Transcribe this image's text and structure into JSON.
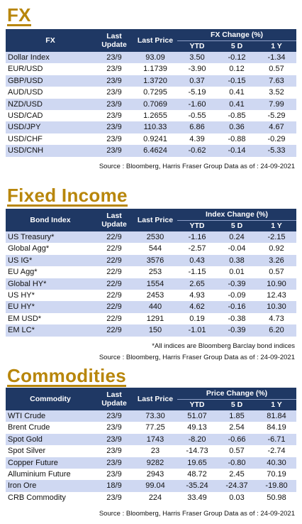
{
  "fx": {
    "title": "FX",
    "headers": {
      "name": "FX",
      "update": "Last Update",
      "price": "Last Price",
      "group": "FX Change (%)",
      "c1": "YTD",
      "c2": "5 D",
      "c3": "1 Y"
    },
    "rows": [
      {
        "name": "Dollar Index",
        "update": "23/9",
        "price": "93.09",
        "c1": "3.50",
        "c2": "-0.12",
        "c3": "-1.34"
      },
      {
        "name": "EUR/USD",
        "update": "23/9",
        "price": "1.1739",
        "c1": "-3.90",
        "c2": "0.12",
        "c3": "0.57"
      },
      {
        "name": "GBP/USD",
        "update": "23/9",
        "price": "1.3720",
        "c1": "0.37",
        "c2": "-0.15",
        "c3": "7.63"
      },
      {
        "name": "AUD/USD",
        "update": "23/9",
        "price": "0.7295",
        "c1": "-5.19",
        "c2": "0.41",
        "c3": "3.52"
      },
      {
        "name": "NZD/USD",
        "update": "23/9",
        "price": "0.7069",
        "c1": "-1.60",
        "c2": "0.41",
        "c3": "7.99"
      },
      {
        "name": "USD/CAD",
        "update": "23/9",
        "price": "1.2655",
        "c1": "-0.55",
        "c2": "-0.85",
        "c3": "-5.29"
      },
      {
        "name": "USD/JPY",
        "update": "23/9",
        "price": "110.33",
        "c1": "6.86",
        "c2": "0.36",
        "c3": "4.67"
      },
      {
        "name": "USD/CHF",
        "update": "23/9",
        "price": "0.9241",
        "c1": "4.39",
        "c2": "-0.88",
        "c3": "-0.29"
      },
      {
        "name": "USD/CNH",
        "update": "23/9",
        "price": "6.4624",
        "c1": "-0.62",
        "c2": "-0.14",
        "c3": "-5.33"
      }
    ],
    "source": "Source : Bloomberg, Harris Fraser Group Data as of : 24-09-2021"
  },
  "fixed_income": {
    "title": "Fixed Income",
    "headers": {
      "name": "Bond Index",
      "update": "Last Update",
      "price": "Last Price",
      "group": "Index Change (%)",
      "c1": "YTD",
      "c2": "5 D",
      "c3": "1 Y"
    },
    "rows": [
      {
        "name": "US Treasury*",
        "update": "22/9",
        "price": "2530",
        "c1": "-1.16",
        "c2": "0.24",
        "c3": "-2.15"
      },
      {
        "name": "Global Agg*",
        "update": "22/9",
        "price": "544",
        "c1": "-2.57",
        "c2": "-0.04",
        "c3": "0.92"
      },
      {
        "name": "US IG*",
        "update": "22/9",
        "price": "3576",
        "c1": "0.43",
        "c2": "0.38",
        "c3": "3.26"
      },
      {
        "name": "EU Agg*",
        "update": "22/9",
        "price": "253",
        "c1": "-1.15",
        "c2": "0.01",
        "c3": "0.57"
      },
      {
        "name": "Global HY*",
        "update": "22/9",
        "price": "1554",
        "c1": "2.65",
        "c2": "-0.39",
        "c3": "10.90"
      },
      {
        "name": "US HY*",
        "update": "22/9",
        "price": "2453",
        "c1": "4.93",
        "c2": "-0.09",
        "c3": "12.43"
      },
      {
        "name": "EU HY*",
        "update": "22/9",
        "price": "440",
        "c1": "4.62",
        "c2": "-0.16",
        "c3": "10.30"
      },
      {
        "name": "EM USD*",
        "update": "22/9",
        "price": "1291",
        "c1": "0.19",
        "c2": "-0.38",
        "c3": "4.73"
      },
      {
        "name": "EM LC*",
        "update": "22/9",
        "price": "150",
        "c1": "-1.01",
        "c2": "-0.39",
        "c3": "6.20"
      }
    ],
    "note": "*All indices are Bloomberg Barclay bond indices",
    "source": "Source : Bloomberg, Harris Fraser Group Data as of : 24-09-2021"
  },
  "commodities": {
    "title": "Commodities",
    "headers": {
      "name": "Commodity",
      "update": "Last Update",
      "price": "Last Price",
      "group": "Price Change (%)",
      "c1": "YTD",
      "c2": "5 D",
      "c3": "1 Y"
    },
    "rows": [
      {
        "name": "WTI Crude",
        "update": "23/9",
        "price": "73.30",
        "c1": "51.07",
        "c2": "1.85",
        "c3": "81.84"
      },
      {
        "name": "Brent Crude",
        "update": "23/9",
        "price": "77.25",
        "c1": "49.13",
        "c2": "2.54",
        "c3": "84.19"
      },
      {
        "name": "Spot Gold",
        "update": "23/9",
        "price": "1743",
        "c1": "-8.20",
        "c2": "-0.66",
        "c3": "-6.71"
      },
      {
        "name": "Spot Silver",
        "update": "23/9",
        "price": "23",
        "c1": "-14.73",
        "c2": "0.57",
        "c3": "-2.74"
      },
      {
        "name": "Copper Future",
        "update": "23/9",
        "price": "9282",
        "c1": "19.65",
        "c2": "-0.80",
        "c3": "40.30"
      },
      {
        "name": "Alluminium Future",
        "update": "23/9",
        "price": "2943",
        "c1": "48.72",
        "c2": "2.45",
        "c3": "70.19"
      },
      {
        "name": "Iron Ore",
        "update": "18/9",
        "price": "99.04",
        "c1": "-35.24",
        "c2": "-24.37",
        "c3": "-19.80"
      },
      {
        "name": "CRB Commodity",
        "update": "23/9",
        "price": "224",
        "c1": "33.49",
        "c2": "0.03",
        "c3": "50.98"
      }
    ],
    "source": "Source : Bloomberg, Harris Fraser Group Data as of : 24-09-2021"
  },
  "colors": {
    "title": "#b8860b",
    "header_bg": "#1f3864",
    "row_alt": "#cfd8f2"
  }
}
